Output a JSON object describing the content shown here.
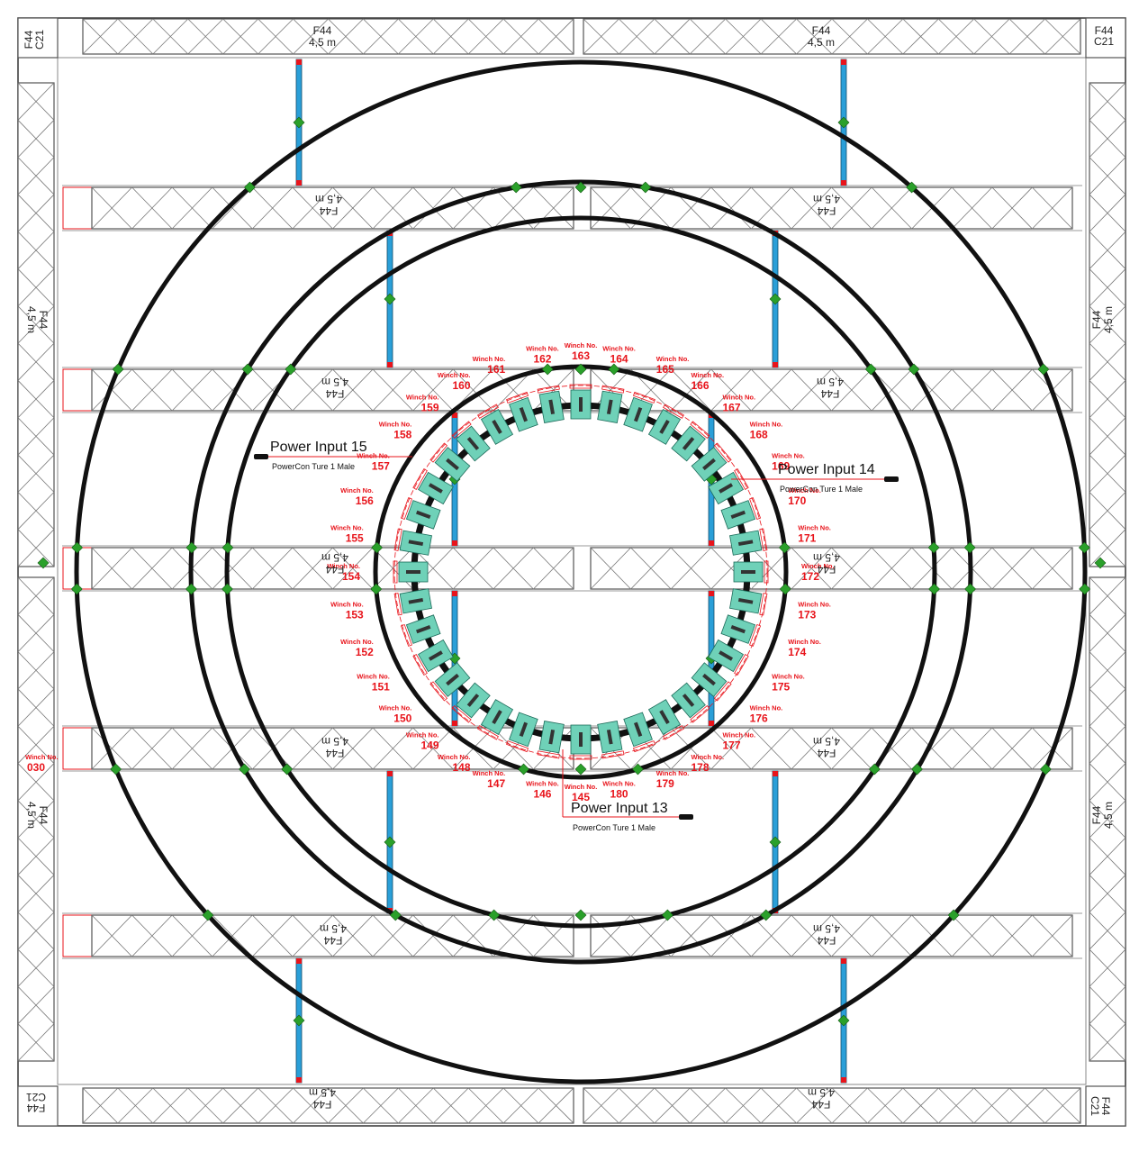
{
  "corner_labels": {
    "truss": "F44",
    "corner": "C21"
  },
  "truss_labels": {
    "type": "F44",
    "length": "4,5 m"
  },
  "winch": {
    "prefix": "Winch No.",
    "ring_numbers": [
      "145",
      "146",
      "147",
      "148",
      "149",
      "150",
      "151",
      "152",
      "153",
      "154",
      "155",
      "156",
      "157",
      "158",
      "159",
      "160",
      "161",
      "162",
      "163",
      "164",
      "165",
      "166",
      "167",
      "168",
      "169",
      "170",
      "171",
      "172",
      "173",
      "174",
      "175",
      "176",
      "177",
      "178",
      "179",
      "180"
    ],
    "extra": {
      "number": "030"
    }
  },
  "power_inputs": [
    {
      "id": "pi-15",
      "title": "Power Input 15",
      "connector": "PowerCon Ture 1 Male"
    },
    {
      "id": "pi-14",
      "title": "Power Input 14",
      "connector": "PowerCon Ture 1 Male"
    },
    {
      "id": "pi-13",
      "title": "Power Input 13",
      "connector": "PowerCon Ture 1 Male"
    }
  ],
  "colors": {
    "truss": "#555555",
    "ring": "#111111",
    "clamp": "#2aa02a",
    "hanger": "#2a9fd8",
    "hanger_end": "#e8141b",
    "winch_label": "#e8141b",
    "winch_body": "#6fd1b8"
  }
}
